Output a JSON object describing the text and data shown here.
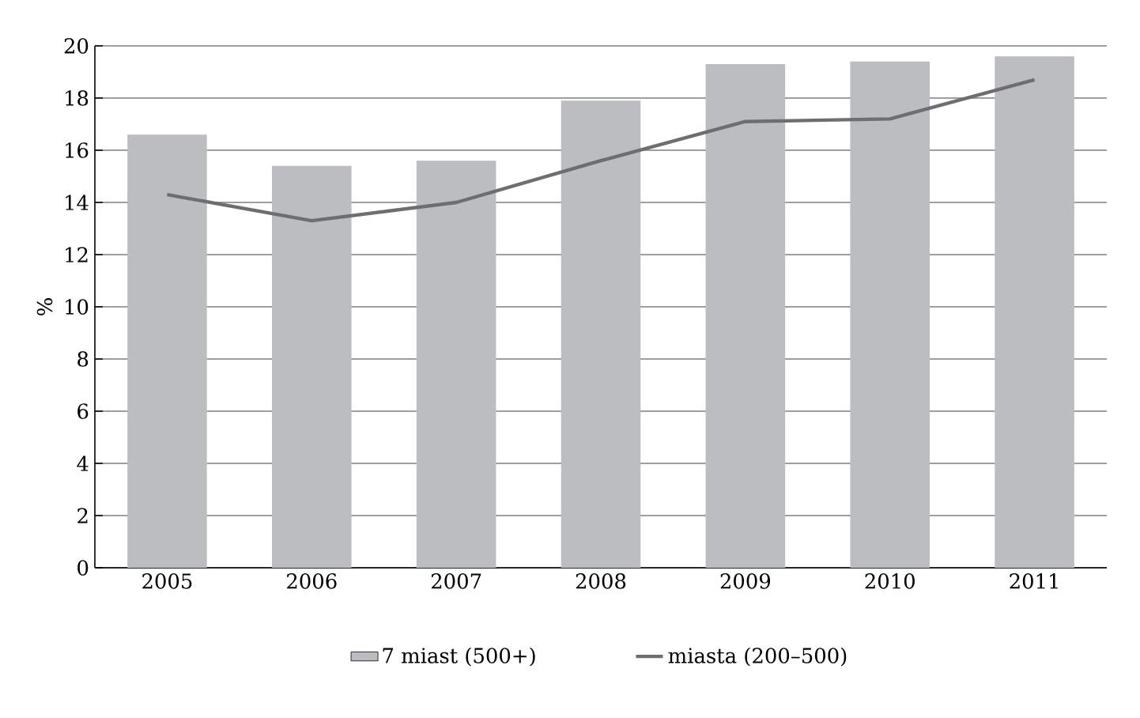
{
  "chart_data": {
    "type": "bar",
    "ylabel": "%",
    "categories": [
      "2005",
      "2006",
      "2007",
      "2008",
      "2009",
      "2010",
      "2011"
    ],
    "series": [
      {
        "name": "7 miast (500+)",
        "color": "#bcbdc0",
        "values": [
          16.6,
          15.4,
          15.6,
          17.9,
          19.3,
          19.4,
          19.6
        ]
      },
      {
        "name": "miasta (200–500)",
        "type": "line",
        "color": "#6d6e70",
        "values": [
          14.3,
          13.3,
          14.0,
          15.6,
          17.1,
          17.2,
          18.7
        ]
      }
    ],
    "ylim": [
      0,
      20
    ],
    "yticks": [
      0,
      2,
      4,
      6,
      8,
      10,
      12,
      14,
      16,
      18,
      20
    ],
    "grid": "y",
    "legend": "bottom"
  }
}
